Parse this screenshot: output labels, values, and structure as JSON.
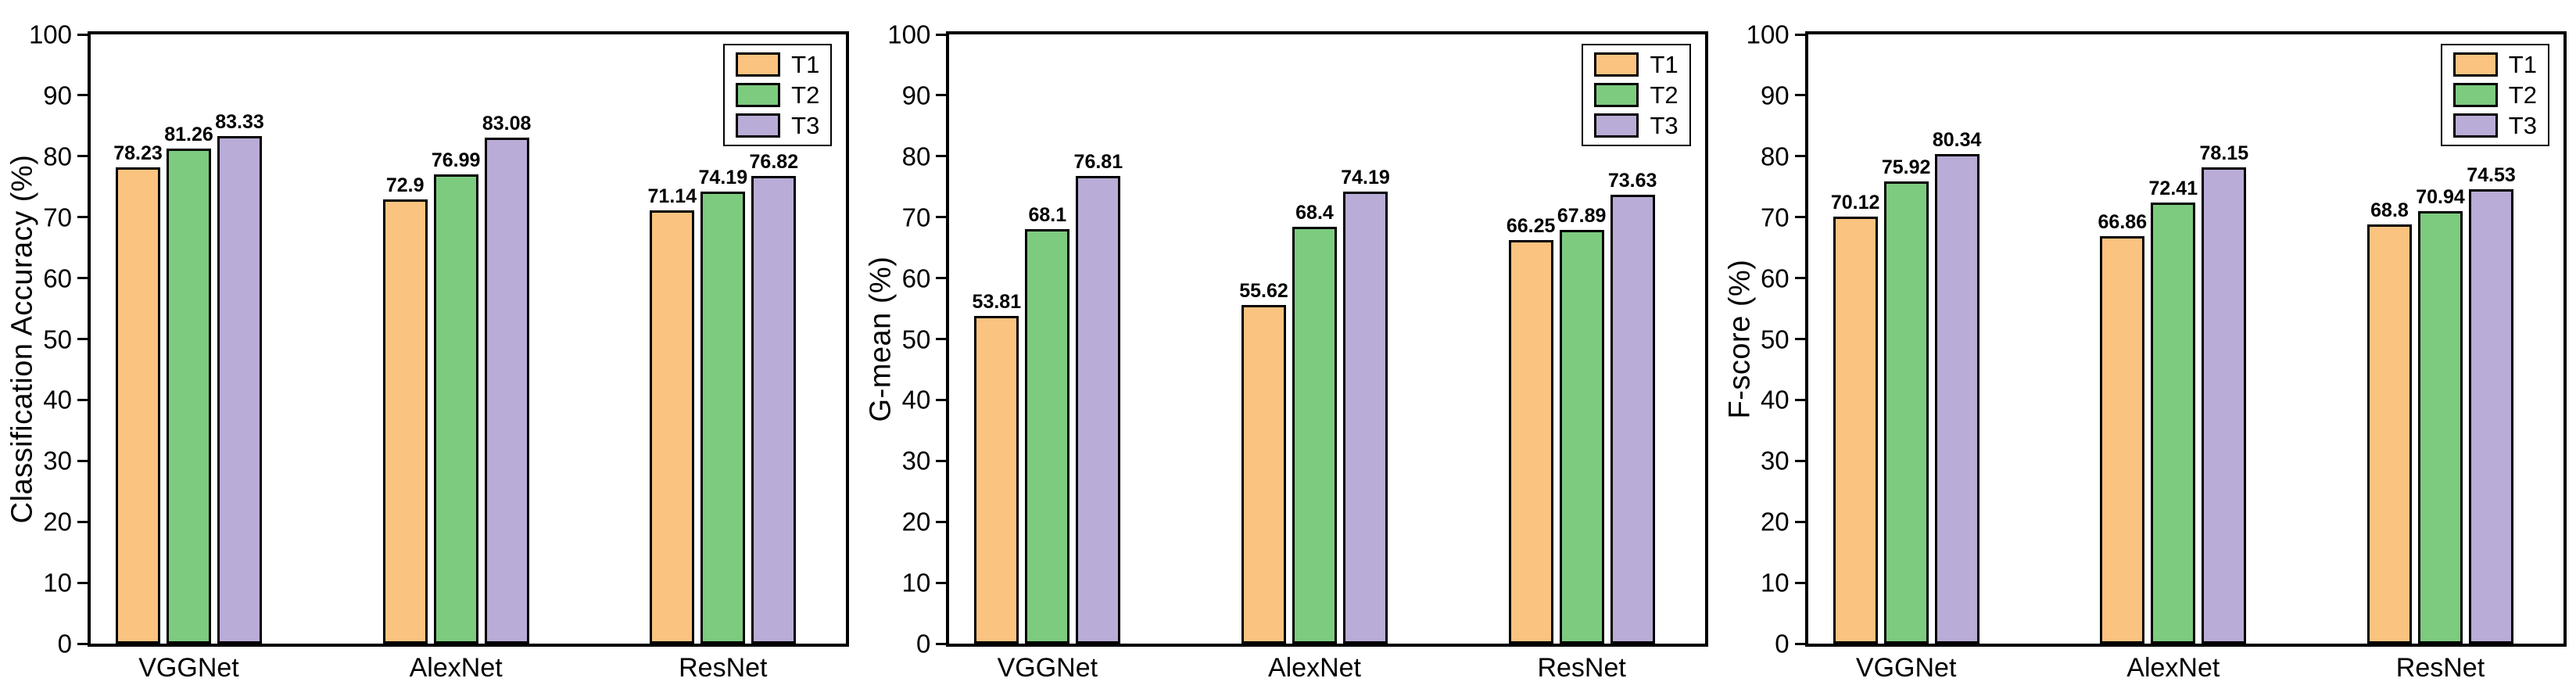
{
  "figure": {
    "background": "#ffffff",
    "series_colors": {
      "T1": "#FBC380",
      "T2": "#7DCB7F",
      "T3": "#B9ACD6"
    },
    "axis_color": "#000000",
    "legend_labels": [
      "T1",
      "T2",
      "T3"
    ]
  },
  "chart_data": [
    {
      "type": "bar",
      "title": "",
      "ylabel": "Classification Accuracy (%)",
      "xlabel": "",
      "ylim": [
        0,
        100
      ],
      "yticks": [
        0,
        10,
        20,
        30,
        40,
        50,
        60,
        70,
        80,
        90,
        100
      ],
      "grid": false,
      "legend_position": "top-right",
      "categories": [
        "VGGNet",
        "AlexNet",
        "ResNet"
      ],
      "series": [
        {
          "name": "T1",
          "color": "#FBC380",
          "values": [
            78.23,
            72.9,
            71.14
          ]
        },
        {
          "name": "T2",
          "color": "#7DCB7F",
          "values": [
            81.26,
            76.99,
            74.19
          ]
        },
        {
          "name": "T3",
          "color": "#B9ACD6",
          "values": [
            83.33,
            83.08,
            76.82
          ]
        }
      ]
    },
    {
      "type": "bar",
      "title": "",
      "ylabel": "G-mean (%)",
      "xlabel": "",
      "ylim": [
        0,
        100
      ],
      "yticks": [
        0,
        10,
        20,
        30,
        40,
        50,
        60,
        70,
        80,
        90,
        100
      ],
      "grid": false,
      "legend_position": "top-right",
      "categories": [
        "VGGNet",
        "AlexNet",
        "ResNet"
      ],
      "series": [
        {
          "name": "T1",
          "color": "#FBC380",
          "values": [
            53.81,
            55.62,
            66.25
          ]
        },
        {
          "name": "T2",
          "color": "#7DCB7F",
          "values": [
            68.1,
            68.4,
            67.89
          ]
        },
        {
          "name": "T3",
          "color": "#B9ACD6",
          "values": [
            76.81,
            74.19,
            73.63
          ]
        }
      ]
    },
    {
      "type": "bar",
      "title": "",
      "ylabel": "F-score (%)",
      "xlabel": "",
      "ylim": [
        0,
        100
      ],
      "yticks": [
        0,
        10,
        20,
        30,
        40,
        50,
        60,
        70,
        80,
        90,
        100
      ],
      "grid": false,
      "legend_position": "top-right",
      "categories": [
        "VGGNet",
        "AlexNet",
        "ResNet"
      ],
      "series": [
        {
          "name": "T1",
          "color": "#FBC380",
          "values": [
            70.12,
            66.86,
            68.8
          ]
        },
        {
          "name": "T2",
          "color": "#7DCB7F",
          "values": [
            75.92,
            72.41,
            70.94
          ]
        },
        {
          "name": "T3",
          "color": "#B9ACD6",
          "values": [
            80.34,
            78.15,
            74.53
          ]
        }
      ]
    }
  ]
}
